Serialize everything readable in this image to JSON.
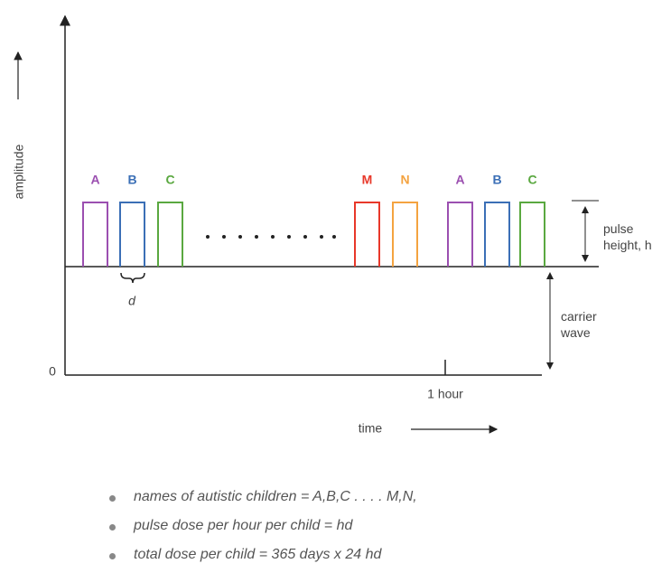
{
  "axis": {
    "y_label": "amplitude",
    "origin": "0",
    "tick_label": "1 hour",
    "x_label": "time"
  },
  "pulses": [
    {
      "label": "A",
      "color": "#9b4fb0"
    },
    {
      "label": "B",
      "color": "#3b6fb6"
    },
    {
      "label": "C",
      "color": "#5aa840"
    },
    {
      "label": "M",
      "color": "#e8382a"
    },
    {
      "label": "N",
      "color": "#f4a340"
    },
    {
      "label": "A",
      "color": "#9b4fb0"
    },
    {
      "label": "B",
      "color": "#3b6fb6"
    },
    {
      "label": "C",
      "color": "#5aa840"
    }
  ],
  "annotations": {
    "width": "d",
    "pulse_height": "pulse height, h",
    "carrier": "carrier wave"
  },
  "notes": [
    "names of autistic children = A,B,C . . . . M,N,",
    "pulse dose per hour per child = hd",
    "total dose per child = 365 days x 24 hd"
  ]
}
